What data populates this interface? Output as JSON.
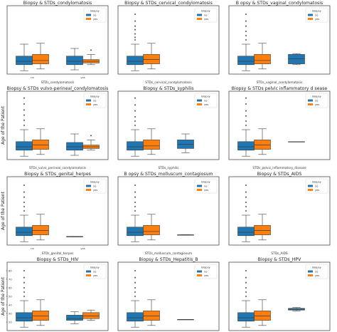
{
  "colors": {
    "no": "#1f77b4",
    "yes": "#ff7f0e",
    "frame": "#333333",
    "median": "#000000"
  },
  "chart_data": [
    {
      "type": "box",
      "title": "Biopsy & STDs_condylomatosis",
      "xlabel": "STDs_condylomatosis",
      "ylabel": "",
      "legend_title": "Biopsy",
      "legend": [
        "no",
        "yes"
      ],
      "categories": [
        "no",
        "yes"
      ],
      "ylim": [
        10,
        90
      ],
      "yticks": [],
      "show_xticks": true,
      "boxes": [
        {
          "cat": 0,
          "hue": "no",
          "whislo": 14,
          "q1": 21,
          "med": 25,
          "q3": 31,
          "whishi": 45,
          "fliers": []
        },
        {
          "cat": 0,
          "hue": "yes",
          "whislo": 16,
          "q1": 22,
          "med": 26,
          "q3": 33,
          "whishi": 46,
          "fliers": []
        },
        {
          "cat": 1,
          "hue": "no",
          "whislo": 15,
          "q1": 21,
          "med": 25,
          "q3": 31,
          "whishi": 40,
          "fliers": []
        },
        {
          "cat": 1,
          "hue": "yes",
          "whislo": 21,
          "q1": 23,
          "med": 25,
          "q3": 27,
          "whishi": 33,
          "fliers": [
            38
          ]
        }
      ]
    },
    {
      "type": "box",
      "title": "Biopsy & STDs_cervical_condylomatosis",
      "xlabel": "STDs_cervical_condylomatosis",
      "ylabel": "",
      "legend_title": "Biopsy",
      "legend": [
        "no",
        "yes"
      ],
      "categories": [
        "no"
      ],
      "ylim": [
        10,
        90
      ],
      "yticks": [],
      "show_xticks": false,
      "boxes": [
        {
          "cat": 0,
          "hue": "no",
          "whislo": 14,
          "q1": 21,
          "med": 25,
          "q3": 31,
          "whishi": 45,
          "fliers": [
            50,
            53,
            57,
            62,
            66,
            72,
            80
          ]
        },
        {
          "cat": 0,
          "hue": "yes",
          "whislo": 16,
          "q1": 22,
          "med": 27,
          "q3": 33,
          "whishi": 46,
          "fliers": []
        }
      ]
    },
    {
      "type": "box",
      "title": "B opsy & STDs_vaginal_condylomatosis",
      "xlabel": "STDs_vaginal_condylomatosis",
      "ylabel": "",
      "legend_title": "Biopsy",
      "legend": [
        "no",
        "yes"
      ],
      "categories": [
        "no",
        "yes"
      ],
      "ylim": [
        10,
        90
      ],
      "yticks": [],
      "show_xticks": false,
      "boxes": [
        {
          "cat": 0,
          "hue": "no",
          "whislo": 14,
          "q1": 21,
          "med": 25,
          "q3": 31,
          "whishi": 45,
          "fliers": [
            50,
            55,
            60,
            66,
            72,
            80
          ]
        },
        {
          "cat": 0,
          "hue": "yes",
          "whislo": 16,
          "q1": 22,
          "med": 26,
          "q3": 33,
          "whishi": 46,
          "fliers": []
        },
        {
          "cat": 1,
          "hue": "no",
          "whislo": 21,
          "q1": 22,
          "med": 28,
          "q3": 33,
          "whishi": 34,
          "fliers": []
        }
      ]
    },
    {
      "type": "box",
      "title": "Biopsy & STDs vulvo-perineal_condylomatosis",
      "xlabel": "STDs_vulvo_perineal_condylomatosis",
      "ylabel": "Age of the Patient",
      "legend_title": "Biopsy",
      "legend": [
        "no",
        "yes"
      ],
      "categories": [
        "no",
        "yes"
      ],
      "ylim": [
        10,
        90
      ],
      "yticks": [],
      "show_xticks": false,
      "boxes": [
        {
          "cat": 0,
          "hue": "no",
          "whislo": 14,
          "q1": 21,
          "med": 25,
          "q3": 31,
          "whishi": 45,
          "fliers": [
            50,
            56,
            62,
            68,
            75,
            82
          ]
        },
        {
          "cat": 0,
          "hue": "yes",
          "whislo": 16,
          "q1": 22,
          "med": 27,
          "q3": 33,
          "whishi": 46,
          "fliers": []
        },
        {
          "cat": 1,
          "hue": "no",
          "whislo": 15,
          "q1": 21,
          "med": 25,
          "q3": 30,
          "whishi": 40,
          "fliers": []
        },
        {
          "cat": 1,
          "hue": "yes",
          "whislo": 21,
          "q1": 23,
          "med": 25,
          "q3": 27,
          "whishi": 33,
          "fliers": [
            38
          ]
        }
      ]
    },
    {
      "type": "box",
      "title": "Biopsy & STDs_syphilis",
      "xlabel": "STDs_syphilis",
      "ylabel": "",
      "legend_title": "Biopsy",
      "legend": [
        "no",
        "yes"
      ],
      "categories": [
        "no",
        "yes"
      ],
      "ylim": [
        10,
        90
      ],
      "yticks": [],
      "show_xticks": false,
      "boxes": [
        {
          "cat": 0,
          "hue": "no",
          "whislo": 14,
          "q1": 21,
          "med": 25,
          "q3": 31,
          "whishi": 45,
          "fliers": [
            50,
            55,
            60,
            67,
            74,
            82
          ]
        },
        {
          "cat": 0,
          "hue": "yes",
          "whislo": 16,
          "q1": 22,
          "med": 26,
          "q3": 33,
          "whishi": 46,
          "fliers": []
        },
        {
          "cat": 1,
          "hue": "no",
          "whislo": 18,
          "q1": 23,
          "med": 28,
          "q3": 33,
          "whishi": 40,
          "fliers": []
        }
      ]
    },
    {
      "type": "box",
      "title": "Biopsy & STDs pelvic inflammatory d sease",
      "xlabel": "STDs_pelvic_inflammatory_disease",
      "ylabel": "",
      "legend_title": "Biopsy",
      "legend": [
        "no",
        "yes"
      ],
      "categories": [
        "no",
        "yes"
      ],
      "ylim": [
        10,
        90
      ],
      "yticks": [],
      "show_xticks": false,
      "boxes": [
        {
          "cat": 0,
          "hue": "no",
          "whislo": 14,
          "q1": 21,
          "med": 25,
          "q3": 31,
          "whishi": 45,
          "fliers": [
            50,
            55,
            61,
            67,
            75,
            82
          ]
        },
        {
          "cat": 0,
          "hue": "yes",
          "whislo": 16,
          "q1": 22,
          "med": 27,
          "q3": 33,
          "whishi": 46,
          "fliers": []
        },
        {
          "cat": 1,
          "hue": "no",
          "whislo": 31,
          "q1": 31,
          "med": 31,
          "q3": 31,
          "whishi": 31,
          "fliers": []
        }
      ]
    },
    {
      "type": "box",
      "title": "Biopsy & STDs_genital_herpes",
      "xlabel": "STDs_genital_herpes",
      "ylabel": "Age of the Patient",
      "legend_title": "Biopsy",
      "legend": [
        "no",
        "yes"
      ],
      "categories": [
        "no",
        "yes"
      ],
      "ylim": [
        10,
        90
      ],
      "yticks": [],
      "show_xticks": true,
      "boxes": [
        {
          "cat": 0,
          "hue": "no",
          "whislo": 14,
          "q1": 21,
          "med": 25,
          "q3": 31,
          "whishi": 45,
          "fliers": [
            50,
            55,
            60,
            66,
            72,
            80
          ]
        },
        {
          "cat": 0,
          "hue": "yes",
          "whislo": 16,
          "q1": 22,
          "med": 27,
          "q3": 33,
          "whishi": 46,
          "fliers": []
        },
        {
          "cat": 1,
          "hue": "no",
          "whislo": 20,
          "q1": 20,
          "med": 20,
          "q3": 20,
          "whishi": 20,
          "fliers": []
        }
      ]
    },
    {
      "type": "box",
      "title": "B opsy & STDs_molluscum_contagiosum",
      "xlabel": "STDs_molluscum_contagiosum",
      "ylabel": "",
      "legend_title": "Biopsy",
      "legend": [
        "no",
        "yes"
      ],
      "categories": [
        "no",
        "yes"
      ],
      "ylim": [
        10,
        90
      ],
      "yticks": [],
      "show_xticks": false,
      "boxes": [
        {
          "cat": 0,
          "hue": "no",
          "whislo": 14,
          "q1": 21,
          "med": 25,
          "q3": 31,
          "whishi": 45,
          "fliers": [
            50,
            55,
            60,
            66,
            72,
            80
          ]
        },
        {
          "cat": 0,
          "hue": "yes",
          "whislo": 16,
          "q1": 22,
          "med": 26,
          "q3": 33,
          "whishi": 46,
          "fliers": []
        },
        {
          "cat": 1,
          "hue": "no",
          "whislo": 22,
          "q1": 22,
          "med": 22,
          "q3": 22,
          "whishi": 22,
          "fliers": []
        }
      ]
    },
    {
      "type": "box",
      "title": "Biopsy & STDs_AIDS",
      "xlabel": "STDs_AIDS",
      "ylabel": "",
      "legend_title": "Biopsy",
      "legend": [
        "no",
        "yes"
      ],
      "categories": [
        "no"
      ],
      "ylim": [
        10,
        90
      ],
      "yticks": [],
      "show_xticks": false,
      "boxes": [
        {
          "cat": 0,
          "hue": "no",
          "whislo": 14,
          "q1": 21,
          "med": 25,
          "q3": 31,
          "whishi": 45,
          "fliers": [
            50,
            55,
            60,
            66,
            72,
            80
          ]
        },
        {
          "cat": 0,
          "hue": "yes",
          "whislo": 16,
          "q1": 22,
          "med": 27,
          "q3": 33,
          "whishi": 46,
          "fliers": []
        }
      ]
    },
    {
      "type": "box",
      "title": "Biopsy & STDs_HIV",
      "xlabel": "STDs_HIV",
      "ylabel": "Age of the Patient",
      "legend_title": "Biopsy",
      "legend": [
        "no",
        "yes"
      ],
      "categories": [
        "no",
        "yes"
      ],
      "ylim": [
        10,
        90
      ],
      "yticks": [
        "20",
        "30",
        "40",
        "50",
        "60",
        "70",
        "80"
      ],
      "show_xticks": true,
      "boxes": [
        {
          "cat": 0,
          "hue": "no",
          "whislo": 14,
          "q1": 21,
          "med": 25,
          "q3": 31,
          "whishi": 45,
          "fliers": [
            50,
            55,
            60,
            66,
            72,
            80
          ]
        },
        {
          "cat": 0,
          "hue": "yes",
          "whislo": 16,
          "q1": 22,
          "med": 27,
          "q3": 33,
          "whishi": 46,
          "fliers": []
        },
        {
          "cat": 1,
          "hue": "no",
          "whislo": 18,
          "q1": 22,
          "med": 24,
          "q3": 28,
          "whishi": 32,
          "fliers": []
        },
        {
          "cat": 1,
          "hue": "yes",
          "whislo": 22,
          "q1": 24,
          "med": 27,
          "q3": 31,
          "whishi": 34,
          "fliers": []
        }
      ]
    },
    {
      "type": "box",
      "title": "Biopsy & STDs_Hepatitis_B",
      "xlabel": "STDs_Hepatitis_B",
      "ylabel": "",
      "legend_title": "Biopsy",
      "legend": [
        "no",
        "yes"
      ],
      "categories": [
        "no",
        "yes"
      ],
      "ylim": [
        10,
        90
      ],
      "yticks": [],
      "show_xticks": false,
      "boxes": [
        {
          "cat": 0,
          "hue": "no",
          "whislo": 14,
          "q1": 21,
          "med": 25,
          "q3": 31,
          "whishi": 45,
          "fliers": [
            50,
            55,
            60,
            66,
            72,
            80
          ]
        },
        {
          "cat": 0,
          "hue": "yes",
          "whislo": 16,
          "q1": 22,
          "med": 27,
          "q3": 33,
          "whishi": 46,
          "fliers": []
        },
        {
          "cat": 1,
          "hue": "no",
          "whislo": 23,
          "q1": 23,
          "med": 23,
          "q3": 23,
          "whishi": 23,
          "fliers": []
        }
      ]
    },
    {
      "type": "box",
      "title": "Biopsy & STDs_HPV",
      "xlabel": "STDs_HPV",
      "ylabel": "",
      "legend_title": "Biopsy",
      "legend": [
        "no",
        "yes"
      ],
      "categories": [
        "no",
        "yes"
      ],
      "ylim": [
        10,
        90
      ],
      "yticks": [],
      "show_xticks": false,
      "boxes": [
        {
          "cat": 0,
          "hue": "no",
          "whislo": 14,
          "q1": 21,
          "med": 25,
          "q3": 31,
          "whishi": 45,
          "fliers": [
            50,
            55,
            60,
            66,
            72,
            80
          ]
        },
        {
          "cat": 0,
          "hue": "yes",
          "whislo": 16,
          "q1": 22,
          "med": 27,
          "q3": 33,
          "whishi": 46,
          "fliers": []
        },
        {
          "cat": 1,
          "hue": "no",
          "whislo": 33,
          "q1": 34,
          "med": 35,
          "q3": 36,
          "whishi": 37,
          "fliers": []
        }
      ]
    }
  ]
}
